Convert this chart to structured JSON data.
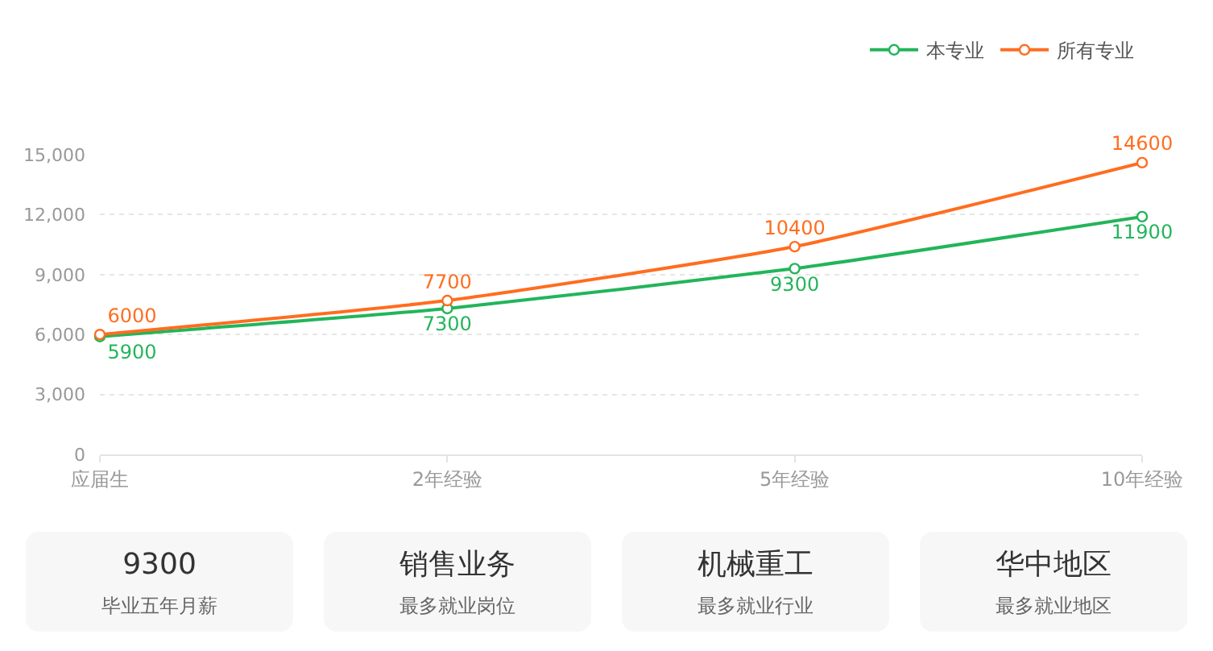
{
  "chart_data": [
    {
      "type": "line",
      "categories": [
        "应届生",
        "2年经验",
        "5年经验",
        "10年经验"
      ],
      "series": [
        {
          "name": "本专业",
          "color": "#22b55a",
          "values": [
            5900,
            7300,
            9300,
            11900
          ]
        },
        {
          "name": "所有专业",
          "color": "#ff6d1f",
          "values": [
            6000,
            7700,
            10400,
            14600
          ]
        }
      ],
      "ylim": [
        0,
        15000
      ],
      "yticks": [
        0,
        {
          "value": 3000,
          "label": "3,000"
        },
        {
          "value": 6000,
          "label": "6,000"
        },
        {
          "value": 9000,
          "label": "9,000"
        },
        {
          "value": 12000,
          "label": "12,000"
        },
        {
          "value": 15000,
          "label": "15,000"
        }
      ],
      "grid": "y",
      "legend": "top right",
      "marker": "circle",
      "data_labels": true
    },
    {
      "type": "other",
      "title": "9300",
      "subtitle": "毕业五年月薪"
    },
    {
      "type": "other",
      "title": "销售业务",
      "subtitle": "最多就业岗位"
    },
    {
      "type": "other",
      "title": "机械重工",
      "subtitle": "最多就业行业"
    },
    {
      "type": "other",
      "title": "华中地区",
      "subtitle": "最多就业地区"
    }
  ]
}
